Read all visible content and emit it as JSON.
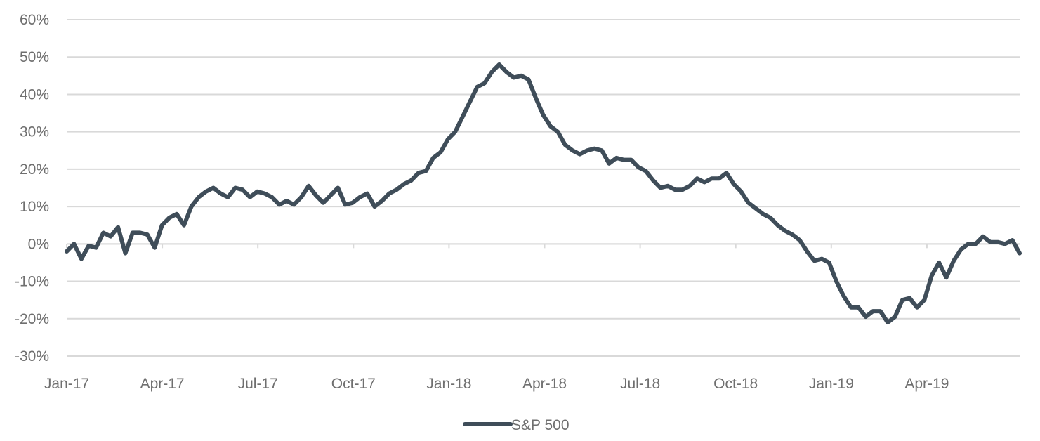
{
  "chart_data": {
    "type": "line",
    "title": "",
    "xlabel": "",
    "ylabel": "",
    "ylim": [
      -30,
      60
    ],
    "y_ticks": [
      "60%",
      "50%",
      "40%",
      "30%",
      "20%",
      "10%",
      "0%",
      "-10%",
      "-20%",
      "-30%"
    ],
    "y_tick_values": [
      60,
      50,
      40,
      30,
      20,
      10,
      0,
      -10,
      -20,
      -30
    ],
    "x_ticks": [
      "Jan-17",
      "Apr-17",
      "Jul-17",
      "Oct-17",
      "Jan-18",
      "Apr-18",
      "Jul-18",
      "Oct-18",
      "Jan-19",
      "Apr-19"
    ],
    "grid": "horizontal",
    "legend_position": "bottom-center",
    "series": [
      {
        "name": "S&P 500",
        "color": "#3f4d59",
        "values": [
          -2,
          0,
          -4,
          -0.5,
          -1,
          3,
          2,
          4.5,
          -2.5,
          3,
          3,
          2.5,
          -1,
          5,
          7,
          8,
          5,
          10,
          12.5,
          14,
          15,
          13.5,
          12.5,
          15,
          14.5,
          12.5,
          14,
          13.5,
          12.5,
          10.5,
          11.5,
          10.5,
          12.5,
          15.5,
          13,
          11,
          13,
          15,
          10.5,
          11,
          12.5,
          13.5,
          10,
          11.5,
          13.5,
          14.5,
          16,
          17,
          19,
          19.5,
          23,
          24.5,
          28,
          30,
          34,
          38,
          42,
          43,
          46,
          48,
          46,
          44.5,
          45,
          44,
          39,
          34.5,
          31.5,
          30,
          26.5,
          25,
          24,
          25,
          25.5,
          25,
          21.5,
          23,
          22.5,
          22.5,
          20.5,
          19.5,
          17,
          15,
          15.5,
          14.5,
          14.5,
          15.5,
          17.5,
          16.5,
          17.5,
          17.5,
          19,
          16,
          14,
          11,
          9.5,
          8,
          7,
          5,
          3.5,
          2.5,
          1,
          -2,
          -4.5,
          -4,
          -5,
          -10,
          -14,
          -17,
          -17,
          -19.5,
          -18,
          -18,
          -21,
          -19.5,
          -15,
          -14.5,
          -17,
          -15,
          -8.5,
          -5,
          -9,
          -4.5,
          -1.5,
          0,
          0,
          2,
          0.5,
          0.5,
          0,
          1,
          -2.5
        ]
      }
    ]
  }
}
